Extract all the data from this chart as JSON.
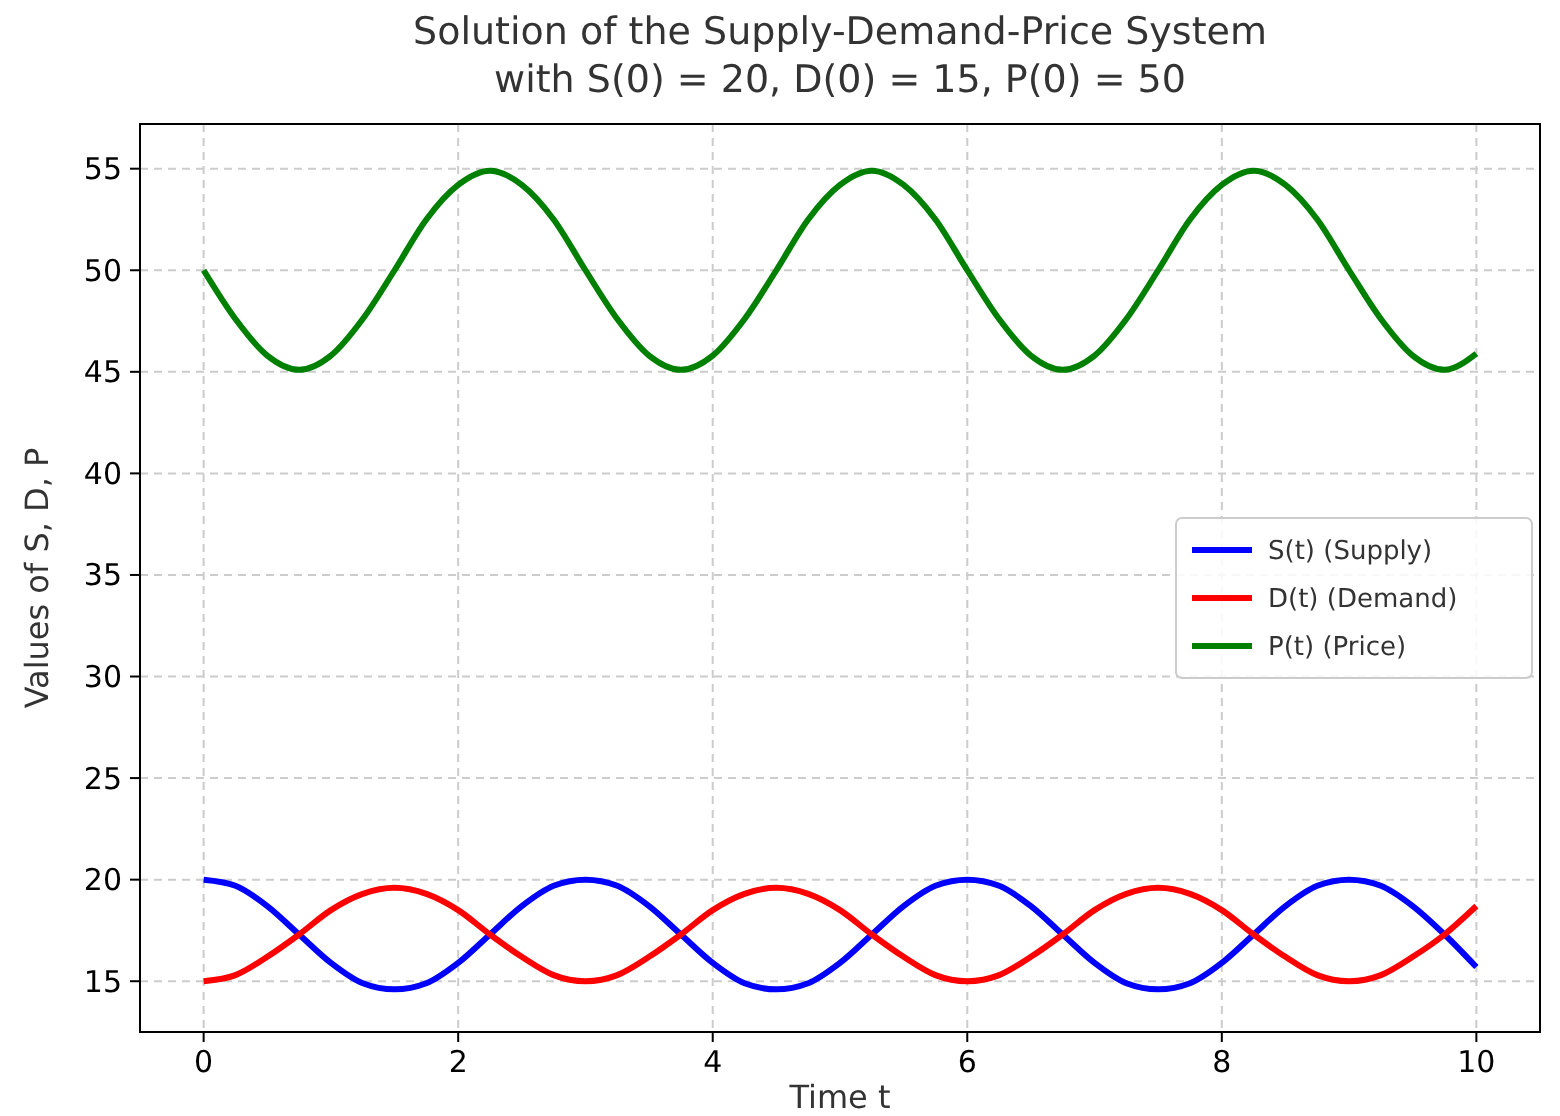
{
  "chart_data": {
    "type": "line",
    "title": "Solution of the Supply-Demand-Price System\nwith S(0) = 20, D(0) = 15, P(0) = 50",
    "xlabel": "Time t",
    "ylabel": "Values of S, D, P",
    "x": [
      0,
      0.25,
      0.5,
      0.75,
      1,
      1.25,
      1.5,
      1.75,
      2,
      2.25,
      2.5,
      2.75,
      3,
      3.25,
      3.5,
      3.75,
      4,
      4.25,
      4.5,
      4.75,
      5,
      5.25,
      5.5,
      5.75,
      6,
      6.25,
      6.5,
      6.75,
      7,
      7.25,
      7.5,
      7.75,
      8,
      8.25,
      8.5,
      8.75,
      9,
      9.25,
      9.5,
      9.75,
      10
    ],
    "series": [
      {
        "name": "S(t) (Supply)",
        "color": "#0000ff",
        "values": [
          20.0,
          19.7,
          18.7,
          17.3,
          15.9,
          14.9,
          14.6,
          14.9,
          15.9,
          17.3,
          18.7,
          19.7,
          20.0,
          19.7,
          18.7,
          17.3,
          15.9,
          14.9,
          14.6,
          14.9,
          15.9,
          17.3,
          18.7,
          19.7,
          20.0,
          19.7,
          18.7,
          17.3,
          15.9,
          14.9,
          14.6,
          14.9,
          15.9,
          17.3,
          18.7,
          19.7,
          20.0,
          19.7,
          18.7,
          17.3,
          15.7
        ]
      },
      {
        "name": "D(t) (Demand)",
        "color": "#ff0000",
        "values": [
          15.0,
          15.3,
          16.2,
          17.3,
          18.5,
          19.3,
          19.6,
          19.3,
          18.5,
          17.3,
          16.2,
          15.3,
          15.0,
          15.3,
          16.2,
          17.3,
          18.5,
          19.3,
          19.6,
          19.3,
          18.5,
          17.3,
          16.2,
          15.3,
          15.0,
          15.3,
          16.2,
          17.3,
          18.5,
          19.3,
          19.6,
          19.3,
          18.5,
          17.3,
          16.2,
          15.3,
          15.0,
          15.3,
          16.2,
          17.3,
          18.7
        ]
      },
      {
        "name": "P(t) (Price)",
        "color": "#008000",
        "values": [
          50.0,
          47.6,
          45.8,
          45.1,
          45.8,
          47.6,
          50.0,
          52.5,
          54.2,
          54.9,
          54.2,
          52.5,
          50.0,
          47.6,
          45.8,
          45.1,
          45.8,
          47.6,
          50.0,
          52.5,
          54.2,
          54.9,
          54.2,
          52.5,
          50.0,
          47.6,
          45.8,
          45.1,
          45.8,
          47.6,
          50.0,
          52.5,
          54.2,
          54.9,
          54.2,
          52.5,
          50.0,
          47.6,
          45.8,
          45.1,
          45.9
        ]
      }
    ],
    "xlim": [
      -0.5,
      10.5
    ],
    "ylim": [
      12.5,
      57.2
    ],
    "xticks": [
      0,
      2,
      4,
      6,
      8,
      10
    ],
    "yticks": [
      15,
      20,
      25,
      30,
      35,
      40,
      45,
      50,
      55
    ],
    "grid": true,
    "legend": "right",
    "line_style": "solid",
    "marker": "none"
  }
}
